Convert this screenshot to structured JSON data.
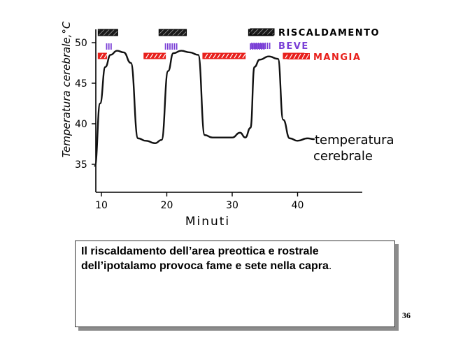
{
  "chart_data": {
    "type": "line",
    "xlabel": "Minuti",
    "ylabel": "Temperatura cerebrale,°C",
    "x_ticks": [
      10,
      20,
      30,
      40
    ],
    "y_ticks": [
      35,
      40,
      45,
      50
    ],
    "xlim": [
      9,
      50
    ],
    "ylim": [
      33,
      52
    ],
    "series": [
      {
        "name": "temperatura cerebrale",
        "x": [
          9.0,
          9.8,
          10.6,
          11.4,
          12.4,
          13.4,
          14.5,
          15.6,
          16.8,
          18.2,
          19.2,
          20.2,
          21.0,
          22.2,
          23.5,
          24.8,
          25.8,
          27.0,
          28.5,
          30.0,
          31.2,
          32.0,
          32.8,
          33.4,
          34.2,
          35.6,
          37.0,
          37.8,
          38.8,
          40.0,
          41.5,
          42.5
        ],
        "values": [
          34.8,
          42.5,
          47.0,
          48.5,
          49.0,
          48.8,
          47.5,
          38.2,
          37.9,
          37.6,
          38.0,
          46.5,
          48.7,
          49.0,
          48.8,
          48.5,
          38.6,
          38.3,
          38.3,
          38.3,
          38.9,
          38.3,
          39.5,
          47.0,
          47.9,
          48.3,
          48.0,
          40.5,
          38.2,
          37.9,
          38.2,
          38.1
        ]
      }
    ],
    "events": [
      {
        "name": "RISCALDAMENTO",
        "color": "#1a1a1a",
        "intervals": [
          [
            9.5,
            12.5
          ],
          [
            18.8,
            23.0
          ],
          [
            32.5,
            36.3
          ]
        ]
      },
      {
        "name": "BEVE",
        "color": "#7a3fd6",
        "intervals": [
          [
            10.8,
            11.8
          ],
          [
            19.8,
            21.8
          ],
          [
            32.8,
            35.0
          ]
        ]
      },
      {
        "name": "MANGIA",
        "color": "#e8201c",
        "intervals": [
          [
            9.5,
            10.8
          ],
          [
            16.5,
            19.8
          ],
          [
            25.5,
            32.0
          ],
          [
            37.8,
            41.0
          ]
        ]
      }
    ],
    "curve_label": [
      "temperatura",
      "cerebrale"
    ]
  },
  "caption": {
    "line1": "Il riscaldamento dell’area preottica e rostrale",
    "line2_main": "dell’ipotalamo provoca fame e sete nella capra",
    "line2_tail": "."
  },
  "page_number": "36",
  "colors": {
    "heat": "#1a1a1a",
    "drink": "#7a3fd6",
    "eat": "#e8201c"
  }
}
